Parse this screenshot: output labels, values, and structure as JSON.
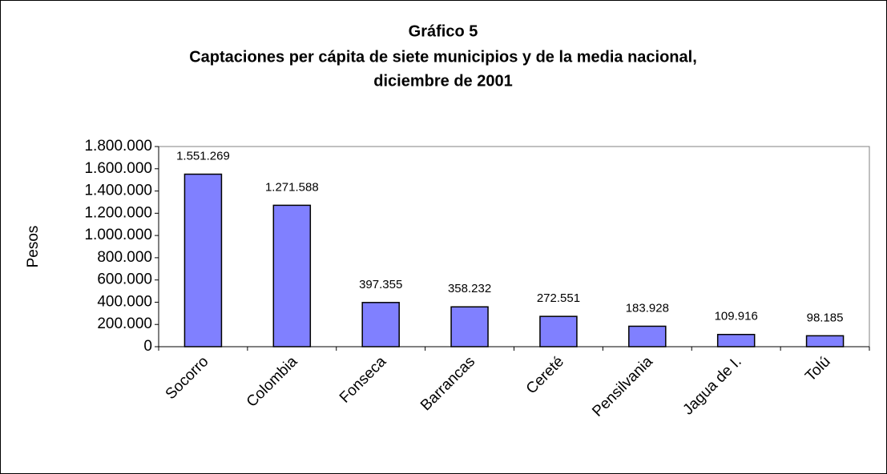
{
  "chart_data": {
    "type": "bar",
    "title": "Gráfico 5",
    "subtitle": [
      "Captaciones per cápita de siete municipios y de la media nacional,",
      "diciembre de 2001"
    ],
    "y_label": "Pesos",
    "categories": [
      "Socorro",
      "Colombia",
      "Fonseca",
      "Barrancas",
      "Cereté",
      "Pensilvania",
      "Jagua de I.",
      "Tolú"
    ],
    "values": [
      1551269,
      1271588,
      397355,
      358232,
      272551,
      183928,
      109916,
      98185
    ],
    "value_labels": [
      "1.551.269",
      "1.271.588",
      "397.355",
      "358.232",
      "272.551",
      "183.928",
      "109.916",
      "98.185"
    ],
    "color": "#8080ff",
    "ylim": [
      0,
      1800000
    ],
    "yticks": [
      0,
      {
        "value": 200000,
        "label": "200.000"
      },
      {
        "value": 400000,
        "label": "400.000"
      },
      {
        "value": 600000,
        "label": "600.000"
      },
      {
        "value": 800000,
        "label": "800.000"
      },
      {
        "value": 1000000,
        "label": "1.000.000"
      },
      {
        "value": 1200000,
        "label": "1.200.000"
      },
      {
        "value": 1400000,
        "label": "1.400.000"
      },
      {
        "value": 1600000,
        "label": "1.600.000"
      },
      {
        "value": 1800000,
        "label": "1.800.000"
      }
    ],
    "grid": false
  }
}
